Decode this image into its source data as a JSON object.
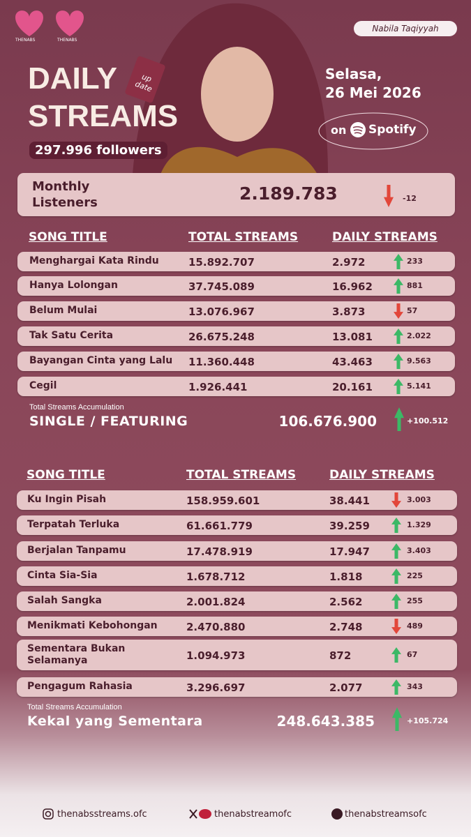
{
  "header": {
    "logo": "THENABS",
    "artist": "Nabila Taqiyyah",
    "title_line1": "DAILY",
    "title_line2": "STREAMS",
    "tag": "up date",
    "followers": "297.996 followers",
    "day": "Selasa,",
    "date": "26 Mei 2026",
    "on": "on",
    "platform": "Spotify"
  },
  "monthly": {
    "label": "Monthly Listeners",
    "value": "2.189.783",
    "change": "-12",
    "trend": "down"
  },
  "sections": [
    {
      "headers": [
        "SONG TITLE",
        "TOTAL STREAMS",
        "DAILY STREAMS"
      ],
      "rows": [
        {
          "title": "Menghargai Kata Rindu",
          "total": "15.892.707",
          "daily": "2.972",
          "change": "233",
          "trend": "up"
        },
        {
          "title": "Hanya Lolongan",
          "total": "37.745.089",
          "daily": "16.962",
          "change": "881",
          "trend": "up"
        },
        {
          "title": "Belum Mulai",
          "total": "13.076.967",
          "daily": "3.873",
          "change": "57",
          "trend": "down"
        },
        {
          "title": "Tak Satu Cerita",
          "total": "26.675.248",
          "daily": "13.081",
          "change": "2.022",
          "trend": "up"
        },
        {
          "title": "Bayangan Cinta yang Lalu",
          "total": "11.360.448",
          "daily": "43.463",
          "change": "9.563",
          "trend": "up"
        },
        {
          "title": "Cegil",
          "total": "1.926.441",
          "daily": "20.161",
          "change": "5.141",
          "trend": "up"
        }
      ],
      "total_label": "Total Streams Accumulation",
      "name": "SINGLE / FEATURING",
      "total": "106.676.900",
      "change": "+100.512",
      "trend": "up"
    },
    {
      "headers": [
        "SONG TITLE",
        "TOTAL STREAMS",
        "DAILY STREAMS"
      ],
      "rows": [
        {
          "title": "Ku Ingin Pisah",
          "total": "158.959.601",
          "daily": "38.441",
          "change": "3.003",
          "trend": "down"
        },
        {
          "title": "Terpatah Terluka",
          "total": "61.661.779",
          "daily": "39.259",
          "change": "1.329",
          "trend": "up"
        },
        {
          "title": "Berjalan Tanpamu",
          "total": "17.478.919",
          "daily": "17.947",
          "change": "3.403",
          "trend": "up"
        },
        {
          "title": "Cinta Sia-Sia",
          "total": "1.678.712",
          "daily": "1.818",
          "change": "225",
          "trend": "up"
        },
        {
          "title": "Salah Sangka",
          "total": "2.001.824",
          "daily": "2.562",
          "change": "255",
          "trend": "up"
        },
        {
          "title": "Menikmati Kebohongan",
          "total": "2.470.880",
          "daily": "2.748",
          "change": "489",
          "trend": "down"
        },
        {
          "title": "Sementara Bukan Selamanya",
          "total": "1.094.973",
          "daily": "872",
          "change": "67",
          "trend": "up"
        },
        {
          "title": "Pengagum Rahasia",
          "total": "3.296.697",
          "daily": "2.077",
          "change": "343",
          "trend": "up"
        }
      ],
      "total_label": "Total Streams Accumulation",
      "name": "Kekal yang Sementara",
      "total": "248.643.385",
      "change": "+105.724",
      "trend": "up"
    }
  ],
  "footer": {
    "instagram": "thenabsstreams.ofc",
    "x": "thenabstreamofc",
    "tiktok": "thenabstreamsofc"
  }
}
